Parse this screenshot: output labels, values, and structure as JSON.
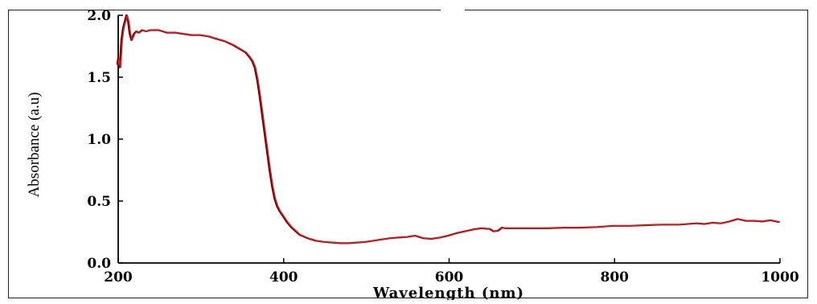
{
  "chart_data": {
    "type": "line",
    "title": "",
    "xlabel": "Wavelength (nm)",
    "ylabel": "Absorbance (a.u)",
    "xlim": [
      200,
      1000
    ],
    "ylim": [
      0.0,
      2.0
    ],
    "x_ticks": [
      200,
      400,
      600,
      800,
      1000
    ],
    "x_tick_labels": [
      "200",
      "400",
      "600",
      "800",
      "1000"
    ],
    "y_ticks": [
      0.0,
      0.5,
      1.0,
      1.5,
      2.0
    ],
    "y_tick_labels": [
      "0.0",
      "0.5",
      "1.0",
      "1.5",
      "2.0"
    ],
    "grid": false,
    "legend": "none",
    "series": [
      {
        "color": "#e8161b",
        "x": [
          200,
          201,
          203,
          205,
          207,
          209,
          211,
          213,
          215,
          217,
          220,
          223,
          226,
          230,
          235,
          240,
          250,
          260,
          270,
          280,
          290,
          300,
          310,
          320,
          330,
          340,
          350,
          355,
          360,
          363,
          366,
          369,
          372,
          375,
          378,
          381,
          384,
          387,
          390,
          393,
          396,
          400,
          405,
          410,
          415,
          420,
          430,
          440,
          450,
          460,
          470,
          480,
          490,
          500,
          510,
          520,
          530,
          540,
          550,
          560,
          570,
          580,
          590,
          600,
          610,
          620,
          630,
          640,
          650,
          655,
          660,
          665,
          670,
          680,
          700,
          720,
          740,
          760,
          780,
          800,
          820,
          840,
          860,
          880,
          900,
          910,
          920,
          930,
          940,
          950,
          960,
          970,
          980,
          990,
          1000
        ],
        "y": [
          1.6,
          1.65,
          1.58,
          1.8,
          1.9,
          1.95,
          2.0,
          1.95,
          1.85,
          1.8,
          1.85,
          1.87,
          1.86,
          1.88,
          1.87,
          1.88,
          1.88,
          1.86,
          1.86,
          1.85,
          1.84,
          1.84,
          1.83,
          1.81,
          1.79,
          1.76,
          1.72,
          1.7,
          1.66,
          1.63,
          1.58,
          1.48,
          1.35,
          1.2,
          1.05,
          0.9,
          0.75,
          0.62,
          0.52,
          0.46,
          0.42,
          0.38,
          0.33,
          0.29,
          0.26,
          0.23,
          0.2,
          0.18,
          0.17,
          0.165,
          0.16,
          0.16,
          0.165,
          0.17,
          0.18,
          0.19,
          0.2,
          0.205,
          0.21,
          0.22,
          0.2,
          0.195,
          0.205,
          0.22,
          0.24,
          0.255,
          0.27,
          0.28,
          0.275,
          0.255,
          0.26,
          0.285,
          0.28,
          0.28,
          0.28,
          0.28,
          0.285,
          0.285,
          0.29,
          0.3,
          0.3,
          0.305,
          0.31,
          0.31,
          0.32,
          0.315,
          0.325,
          0.32,
          0.335,
          0.355,
          0.34,
          0.34,
          0.335,
          0.345,
          0.33
        ]
      }
    ]
  }
}
